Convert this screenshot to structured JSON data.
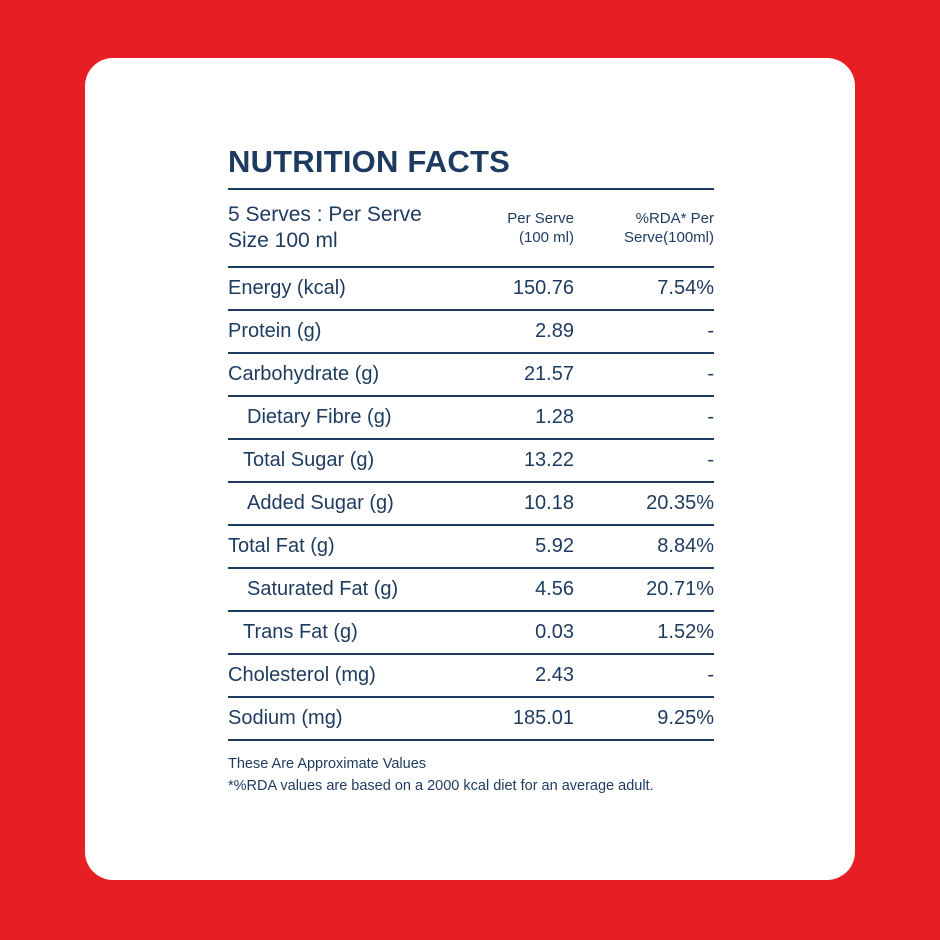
{
  "colors": {
    "background": "#e81e25",
    "card": "#ffffff",
    "text": "#1d3a5f"
  },
  "title": "NUTRITION FACTS",
  "header": {
    "serving": "5 Serves : Per Serve\nSize 100 ml",
    "per_serve": "Per Serve\n(100 ml)",
    "rda": "%RDA* Per\nServe(100ml)"
  },
  "rows": [
    {
      "name": "Energy (kcal)",
      "per_serve": "150.76",
      "rda": "7.54%"
    },
    {
      "name": "Protein (g)",
      "per_serve": "2.89",
      "rda": "-"
    },
    {
      "name": "Carbohydrate (g)",
      "per_serve": "21.57",
      "rda": "-"
    },
    {
      "name": "Dietary Fibre (g)",
      "per_serve": "1.28",
      "rda": "-"
    },
    {
      "name": "Total Sugar (g)",
      "per_serve": "13.22",
      "rda": "-"
    },
    {
      "name": "Added Sugar (g)",
      "per_serve": "10.18",
      "rda": "20.35%"
    },
    {
      "name": "Total Fat (g)",
      "per_serve": "5.92",
      "rda": "8.84%"
    },
    {
      "name": "Saturated Fat (g)",
      "per_serve": "4.56",
      "rda": "20.71%"
    },
    {
      "name": "Trans Fat (g)",
      "per_serve": "0.03",
      "rda": "1.52%"
    },
    {
      "name": "Cholesterol (mg)",
      "per_serve": "2.43",
      "rda": "-"
    },
    {
      "name": "Sodium (mg)",
      "per_serve": "185.01",
      "rda": "9.25%"
    }
  ],
  "notes": {
    "line1": "These Are Approximate Values",
    "line2": "*%RDA values are based on a 2000 kcal diet for an average adult."
  }
}
